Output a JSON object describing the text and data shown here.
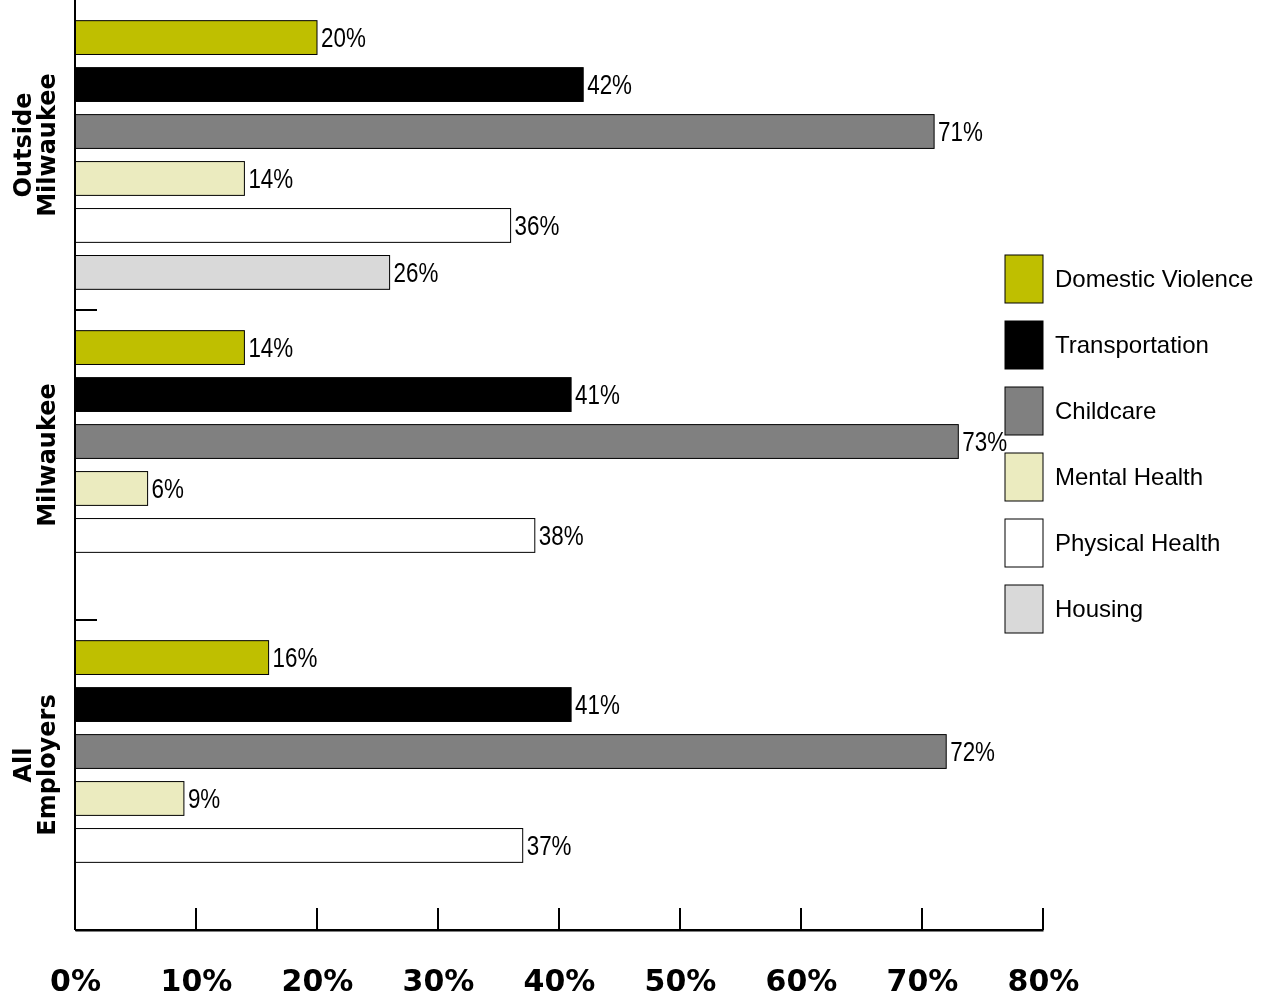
{
  "chart_data": {
    "type": "bar",
    "orientation": "horizontal",
    "categories": [
      "Outside Milwaukee",
      "Milwaukee",
      "All Employers"
    ],
    "series": [
      {
        "name": "Domestic Violence",
        "color": "#bfbf00",
        "values": [
          20,
          14,
          16
        ],
        "value_labels": [
          "20%",
          "14%",
          "16%"
        ]
      },
      {
        "name": "Transportation",
        "color": "#000000",
        "values": [
          42,
          41,
          41
        ],
        "value_labels": [
          "42%",
          "41%",
          "41%"
        ]
      },
      {
        "name": "Childcare",
        "color": "#808080",
        "values": [
          71,
          73,
          72
        ],
        "value_labels": [
          "71%",
          "73%",
          "72%"
        ]
      },
      {
        "name": "Mental Health",
        "color": "#ebebbf",
        "values": [
          14,
          6,
          9
        ],
        "value_labels": [
          "14%",
          "6%",
          "9%"
        ]
      },
      {
        "name": "Physical Health",
        "color": "#ffffff",
        "values": [
          36,
          38,
          37
        ],
        "value_labels": [
          "36%",
          "38%",
          "37%"
        ]
      },
      {
        "name": "Housing",
        "color": "#d9d9d9",
        "values": [
          26,
          null,
          null
        ],
        "value_labels": [
          "26%",
          null,
          null
        ]
      }
    ],
    "xlim": [
      0,
      80
    ],
    "xticks": [
      {
        "value": 0,
        "label": "0%"
      },
      {
        "value": 10,
        "label": "10%"
      },
      {
        "value": 20,
        "label": "20%"
      },
      {
        "value": 30,
        "label": "30%"
      },
      {
        "value": 40,
        "label": "40%"
      },
      {
        "value": 50,
        "label": "50%"
      },
      {
        "value": 60,
        "label": "60%"
      },
      {
        "value": 70,
        "label": "70%"
      },
      {
        "value": 80,
        "label": "80%"
      }
    ],
    "legend": "right"
  }
}
